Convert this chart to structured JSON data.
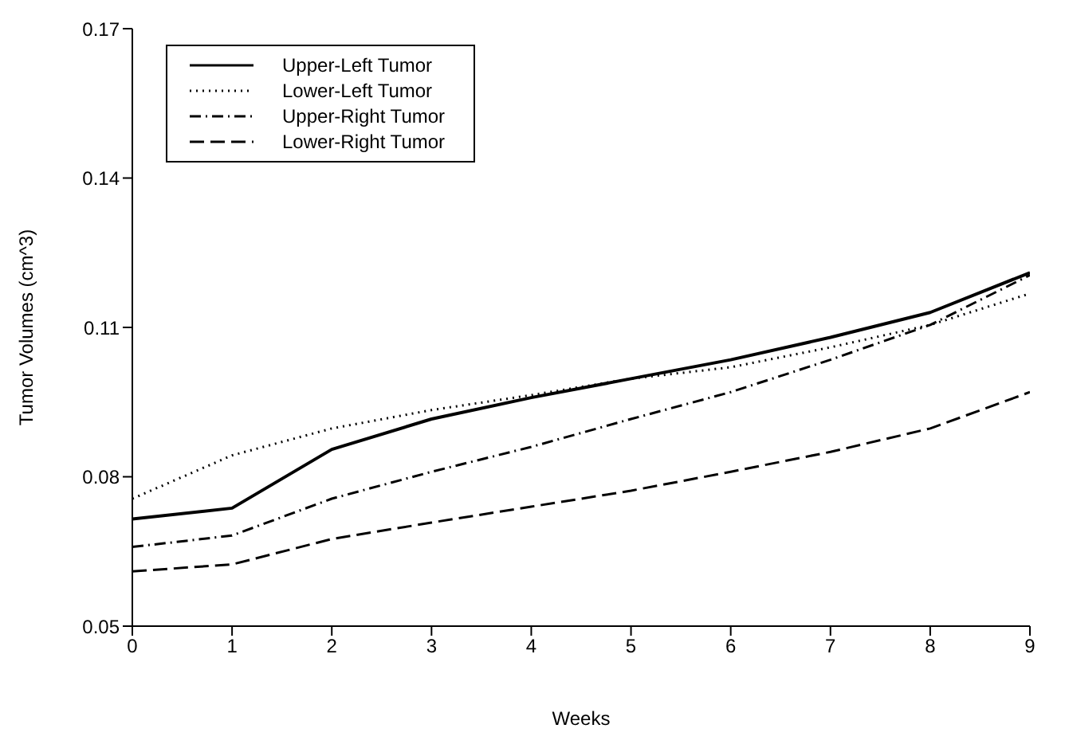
{
  "chart_data": {
    "type": "line",
    "xlabel": "Weeks",
    "ylabel": "Tumor Volumes (cm^3)",
    "x": [
      0,
      1,
      2,
      3,
      4,
      5,
      6,
      7,
      8,
      9
    ],
    "series": [
      {
        "name": "Upper-Left Tumor",
        "color": "#000000",
        "line_style": "solid",
        "values": [
          0.0715,
          0.0737,
          0.0855,
          0.0916,
          0.0959,
          0.0997,
          0.1035,
          0.108,
          0.113,
          0.121
        ]
      },
      {
        "name": "Lower-Left Tumor",
        "color": "#000000",
        "line_style": "dotted",
        "values": [
          0.0756,
          0.0843,
          0.0897,
          0.0934,
          0.0964,
          0.0997,
          0.102,
          0.106,
          0.1105,
          0.1168
        ]
      },
      {
        "name": "Upper-Right Tumor",
        "color": "#000000",
        "line_style": "dashdot",
        "values": [
          0.0659,
          0.0682,
          0.0756,
          0.081,
          0.086,
          0.0916,
          0.097,
          0.1035,
          0.1105,
          0.1205
        ]
      },
      {
        "name": "Lower-Right Tumor",
        "color": "#000000",
        "line_style": "dashed",
        "values": [
          0.061,
          0.0624,
          0.0675,
          0.0708,
          0.074,
          0.0772,
          0.081,
          0.085,
          0.0897,
          0.097
        ]
      }
    ],
    "xlim": [
      0,
      9
    ],
    "xticks": [
      0,
      1,
      2,
      3,
      4,
      5,
      6,
      7,
      8,
      9
    ],
    "ylim": [
      0.05,
      0.17
    ],
    "yticks": [
      0.05,
      0.08,
      0.11,
      0.14,
      0.17
    ],
    "grid": false,
    "legend": "top left",
    "marker": "none"
  }
}
